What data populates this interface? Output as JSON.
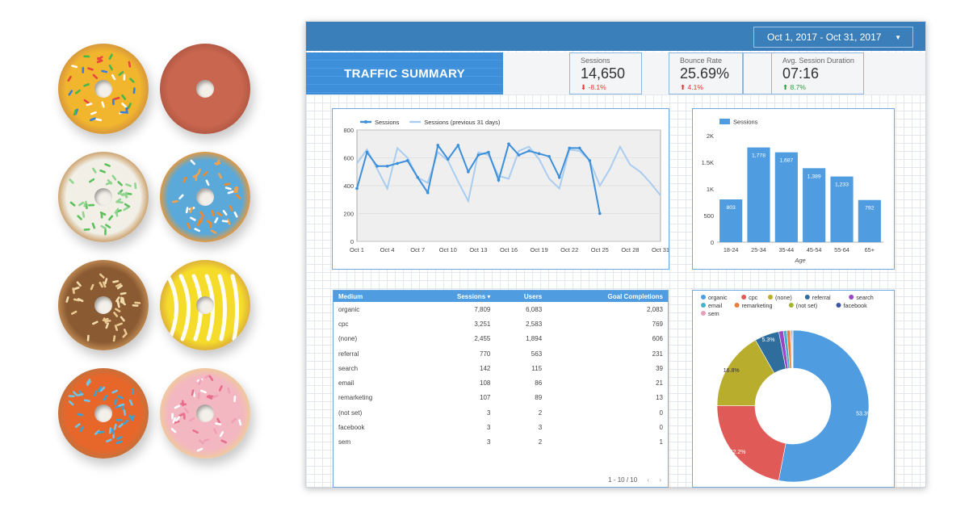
{
  "date_range": "Oct 1, 2017 - Oct 31, 2017",
  "title": "TRAFFIC SUMMARY",
  "kpis": [
    {
      "label": "Sessions",
      "value": "14,650",
      "change": "-8.1%",
      "direction": "down"
    },
    {
      "label": "Bounce Rate",
      "value": "25.69%",
      "change": "4.1%",
      "direction": "up-bad"
    },
    {
      "label": "Avg. Session Duration",
      "value": "07:16",
      "change": "8.7%",
      "direction": "up-good"
    }
  ],
  "colors": {
    "accent": "#3d8fd9",
    "topbar": "#3b7fba",
    "down": "#e0362c",
    "up": "#2e9b3a"
  },
  "chart_data": [
    {
      "type": "line",
      "x": [
        "Oct 1",
        "Oct 2",
        "Oct 3",
        "Oct 4",
        "Oct 5",
        "Oct 6",
        "Oct 7",
        "Oct 8",
        "Oct 9",
        "Oct 10",
        "Oct 11",
        "Oct 12",
        "Oct 13",
        "Oct 14",
        "Oct 15",
        "Oct 16",
        "Oct 17",
        "Oct 18",
        "Oct 19",
        "Oct 20",
        "Oct 21",
        "Oct 22",
        "Oct 23",
        "Oct 24",
        "Oct 25",
        "Oct 26",
        "Oct 27",
        "Oct 28",
        "Oct 29",
        "Oct 30",
        "Oct 31"
      ],
      "xticks": [
        "Oct 1",
        "Oct 4",
        "Oct 7",
        "Oct 10",
        "Oct 13",
        "Oct 16",
        "Oct 19",
        "Oct 22",
        "Oct 25",
        "Oct 28",
        "Oct 31"
      ],
      "yticks": [
        0,
        200,
        400,
        600,
        800
      ],
      "ylim": [
        0,
        800
      ],
      "series": [
        {
          "name": "Sessions",
          "color": "#3d8fd9",
          "values": [
            380,
            640,
            540,
            540,
            560,
            580,
            460,
            350,
            690,
            590,
            690,
            500,
            620,
            640,
            440,
            700,
            620,
            650,
            630,
            610,
            460,
            670,
            670,
            580,
            200,
            null,
            null,
            null,
            null,
            null,
            null
          ]
        },
        {
          "name": "Sessions (previous 31 days)",
          "color": "#a9cdf0",
          "values": [
            560,
            660,
            520,
            380,
            670,
            600,
            460,
            420,
            640,
            580,
            430,
            290,
            640,
            620,
            470,
            450,
            650,
            680,
            590,
            450,
            380,
            660,
            650,
            580,
            400,
            520,
            680,
            550,
            500,
            420,
            330
          ]
        }
      ]
    },
    {
      "type": "bar",
      "series_name": "Sessions",
      "categories": [
        "18-24",
        "25-34",
        "35-44",
        "45-54",
        "55-64",
        "65+"
      ],
      "values": [
        803,
        1778,
        1687,
        1389,
        1233,
        792
      ],
      "value_labels": [
        "803",
        "1,778",
        "1,687",
        "1,389",
        "1,233",
        "792"
      ],
      "yticks": [
        "0",
        "500",
        "1K",
        "1.5K",
        "2K"
      ],
      "ytick_values": [
        0,
        500,
        1000,
        1500,
        2000
      ],
      "ylim": [
        0,
        2000
      ],
      "xlabel": "Age",
      "color": "#4f9de0"
    },
    {
      "type": "pie",
      "legend": [
        "organic",
        "cpc",
        "(none)",
        "referral",
        "search",
        "email",
        "remarketing",
        "(not set)",
        "facebook",
        "sem"
      ],
      "colors": [
        "#4f9de0",
        "#e05b57",
        "#b8ad2c",
        "#2f6e9c",
        "#9a45c5",
        "#45b3c9",
        "#f07a3c",
        "#a3b42f",
        "#3b55a6",
        "#e8a0b9"
      ],
      "values": [
        7809,
        3251,
        2455,
        770,
        142,
        108,
        107,
        3,
        3,
        3
      ],
      "labels": [
        "53.3%",
        "22.2%",
        "16.8%",
        "5.3%",
        "",
        "",
        "",
        "",
        "",
        ""
      ]
    }
  ],
  "table": {
    "headers": [
      "Medium",
      "Sessions ▾",
      "Users",
      "Goal Completions"
    ],
    "rows": [
      [
        "organic",
        "7,809",
        "6,083",
        "2,083"
      ],
      [
        "cpc",
        "3,251",
        "2,583",
        "769"
      ],
      [
        "(none)",
        "2,455",
        "1,894",
        "606"
      ],
      [
        "referral",
        "770",
        "563",
        "231"
      ],
      [
        "search",
        "142",
        "115",
        "39"
      ],
      [
        "email",
        "108",
        "86",
        "21"
      ],
      [
        "remarketing",
        "107",
        "89",
        "13"
      ],
      [
        "(not set)",
        "3",
        "2",
        "0"
      ],
      [
        "facebook",
        "3",
        "3",
        "0"
      ],
      [
        "sem",
        "3",
        "2",
        "1"
      ]
    ],
    "pager": "1 - 10 / 10",
    "prev": "‹",
    "next": "›"
  },
  "donuts": [
    {
      "name": "yellow-sprinkle-donut",
      "glaze": "#f2b52e",
      "dough": "#d99a3a"
    },
    {
      "name": "pink-glazed-donut",
      "glaze": "#c9664f",
      "dough": "#b55a45"
    },
    {
      "name": "white-green-sprinkle-donut",
      "glaze": "#f1efe6",
      "dough": "#cfa877"
    },
    {
      "name": "blue-orange-sprinkle-donut",
      "glaze": "#5aa9d9",
      "dough": "#d99a4a"
    },
    {
      "name": "chocolate-nut-donut",
      "glaze": "#8a5a33",
      "dough": "#b8834d"
    },
    {
      "name": "yellow-white-drizzle-donut",
      "glaze": "#f5dc2a",
      "dough": "#e0b43a"
    },
    {
      "name": "orange-blue-sprinkle-donut",
      "glaze": "#e7672b",
      "dough": "#c8703a"
    },
    {
      "name": "pink-curl-donut",
      "glaze": "#f3b7c2",
      "dough": "#f0c8a0"
    }
  ]
}
